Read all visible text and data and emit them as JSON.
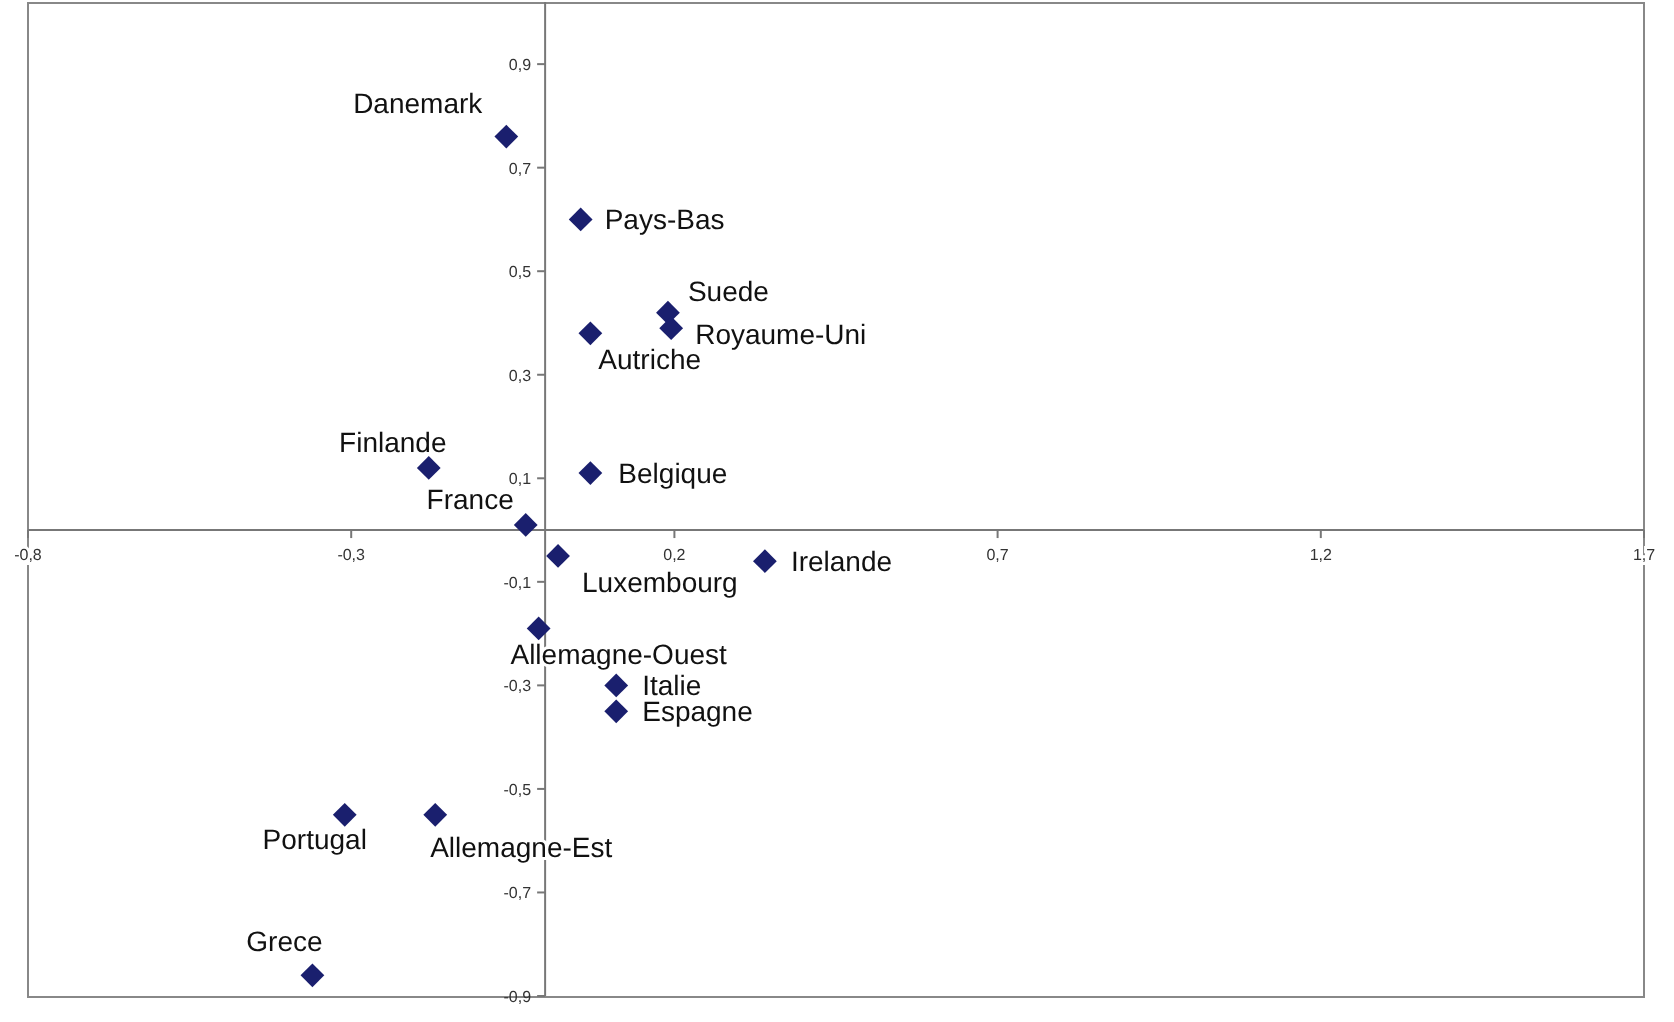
{
  "chart_data": {
    "type": "scatter",
    "marker": "diamond",
    "grid": false,
    "xlim": [
      -0.8,
      1.7
    ],
    "ylim": [
      -0.9,
      1.02
    ],
    "xticks": [
      {
        "value": -0.8,
        "label": "-0,8"
      },
      {
        "value": -0.3,
        "label": "-0,3"
      },
      {
        "value": 0.2,
        "label": "0,2"
      },
      {
        "value": 0.7,
        "label": "0,7"
      },
      {
        "value": 1.2,
        "label": "1,2"
      },
      {
        "value": 1.7,
        "label": "1,7"
      }
    ],
    "yticks": [
      {
        "value": -0.9,
        "label": "-0,9"
      },
      {
        "value": -0.7,
        "label": "-0,7"
      },
      {
        "value": -0.5,
        "label": "-0,5"
      },
      {
        "value": -0.3,
        "label": "-0,3"
      },
      {
        "value": -0.1,
        "label": "-0,1"
      },
      {
        "value": 0.1,
        "label": "0,1"
      },
      {
        "value": 0.3,
        "label": "0,3"
      },
      {
        "value": 0.5,
        "label": "0,5"
      },
      {
        "value": 0.7,
        "label": "0,7"
      },
      {
        "value": 0.9,
        "label": "0,9"
      }
    ],
    "series": [
      {
        "color": "#1a1f6e",
        "x": [
          -0.06,
          0.055,
          0.19,
          0.195,
          0.07,
          -0.18,
          0.07,
          -0.03,
          0.02,
          0.34,
          -0.01,
          0.11,
          0.11,
          -0.31,
          -0.17,
          -0.36
        ],
        "values": [
          0.76,
          0.6,
          0.42,
          0.39,
          0.38,
          0.12,
          0.11,
          0.01,
          -0.05,
          -0.06,
          -0.19,
          -0.3,
          -0.35,
          -0.55,
          -0.55,
          -0.86
        ]
      }
    ],
    "annotations": [
      {
        "text": "Danemark",
        "x": -0.06,
        "y": 0.76
      },
      {
        "text": "Pays-Bas",
        "x": 0.055,
        "y": 0.6
      },
      {
        "text": "Suede",
        "x": 0.19,
        "y": 0.42
      },
      {
        "text": "Royaume-Uni",
        "x": 0.195,
        "y": 0.39
      },
      {
        "text": "Autriche",
        "x": 0.07,
        "y": 0.38
      },
      {
        "text": "Finlande",
        "x": -0.18,
        "y": 0.12
      },
      {
        "text": "Belgique",
        "x": 0.07,
        "y": 0.11
      },
      {
        "text": "France",
        "x": -0.03,
        "y": 0.01
      },
      {
        "text": "Luxembourg",
        "x": 0.02,
        "y": -0.05
      },
      {
        "text": "Irelande",
        "x": 0.34,
        "y": -0.06
      },
      {
        "text": "Allemagne-Ouest",
        "x": -0.01,
        "y": -0.19
      },
      {
        "text": "Italie",
        "x": 0.11,
        "y": -0.3
      },
      {
        "text": "Espagne",
        "x": 0.11,
        "y": -0.35
      },
      {
        "text": "Portugal",
        "x": -0.31,
        "y": -0.55
      },
      {
        "text": "Allemagne-Est",
        "x": -0.17,
        "y": -0.55
      },
      {
        "text": "Grece",
        "x": -0.36,
        "y": -0.86
      }
    ]
  }
}
